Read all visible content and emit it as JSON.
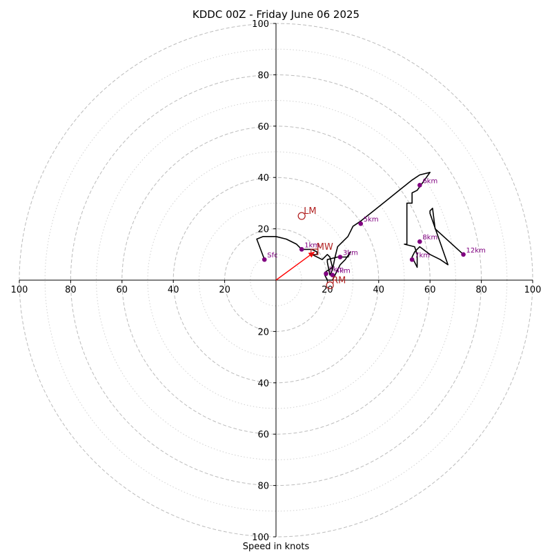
{
  "chart_data": {
    "type": "hodograph",
    "title": "KDDC 00Z - Friday June 06 2025",
    "xlabel": "Speed in knots",
    "ylabel": "",
    "range": [
      -100,
      100
    ],
    "ring_major": [
      20,
      40,
      60,
      80,
      100
    ],
    "ring_minor": [
      10,
      30,
      50,
      70,
      90
    ],
    "tick_values": [
      20,
      40,
      60,
      80,
      100
    ],
    "tick_labels": [
      "20",
      "40",
      "60",
      "80",
      "100"
    ],
    "grid": true,
    "colors": {
      "trace": "#000000",
      "height_marker": "#800080",
      "motion": "#b22222",
      "mean_wind_vector": "#ff0000",
      "grid": "#bbbbbb",
      "axis": "#000000"
    },
    "series": [
      {
        "u": [
          -4.5,
          -7.5,
          -5,
          0,
          4,
          8,
          10,
          14,
          16,
          16,
          14,
          18,
          20,
          21,
          22,
          19,
          19,
          20,
          22,
          25,
          27,
          29,
          28,
          24,
          20,
          20,
          21,
          22,
          23,
          24,
          26,
          28,
          30,
          33,
          38,
          43,
          48,
          53,
          56,
          60,
          55,
          53,
          53,
          51,
          51,
          50,
          54,
          55,
          55,
          53,
          54,
          56,
          60,
          64,
          67,
          60,
          60,
          61,
          62,
          73
        ],
        "v": [
          8,
          16,
          17,
          17,
          16,
          14,
          12,
          12,
          11,
          10,
          10,
          8,
          10,
          9,
          5,
          3,
          2,
          0,
          0,
          6,
          8,
          11,
          9,
          9,
          8,
          7,
          2,
          4,
          9,
          13,
          15,
          17,
          21,
          23,
          27,
          31,
          35,
          39,
          41,
          42,
          35,
          34,
          30,
          30,
          14,
          14,
          13,
          10,
          5,
          9,
          11,
          13,
          10,
          8,
          6,
          26,
          27,
          28,
          20,
          10
        ]
      }
    ],
    "height_markers": [
      {
        "label": "Sfc",
        "u": -4.5,
        "v": 8
      },
      {
        "label": "1km",
        "u": 10,
        "v": 12
      },
      {
        "label": "2km",
        "u": 19.5,
        "v": 2.5
      },
      {
        "label": "3km",
        "u": 25,
        "v": 9
      },
      {
        "label": "4km",
        "u": 22,
        "v": 2
      },
      {
        "label": "5km",
        "u": 33,
        "v": 22
      },
      {
        "label": "6km",
        "u": 56,
        "v": 37
      },
      {
        "label": "7km",
        "u": 53,
        "v": 8
      },
      {
        "label": "8km",
        "u": 56,
        "v": 15
      },
      {
        "label": "12km",
        "u": 73,
        "v": 10
      }
    ],
    "storm_motion": [
      {
        "label": "LM",
        "u": 10,
        "v": 25
      },
      {
        "label": "RM",
        "u": 21,
        "v": -2
      },
      {
        "label": "MW",
        "u": 15,
        "v": 11
      }
    ],
    "mean_wind_vector": {
      "u": 15,
      "v": 11
    }
  }
}
